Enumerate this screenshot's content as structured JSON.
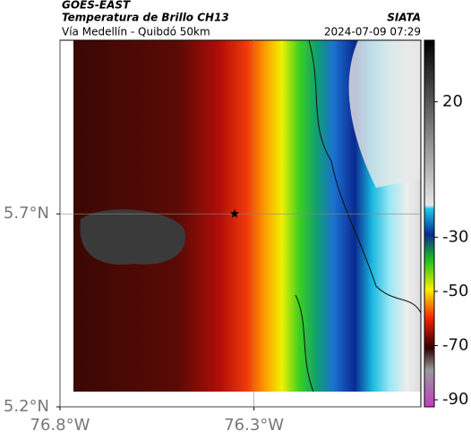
{
  "header": {
    "source": "GOES-EAST",
    "title": "Temperatura de Brillo CH13",
    "brand": "SIATA",
    "subtitle": "Vía Medellín - Quibdó 50km",
    "timestamp": "2024-07-09 07:29"
  },
  "map": {
    "xlim": [
      -76.8,
      -75.87
    ],
    "ylim": [
      5.2,
      6.15
    ],
    "xticks": [
      {
        "value": -76.8,
        "label": "76.8°W"
      },
      {
        "value": -76.3,
        "label": "76.3°W"
      }
    ],
    "yticks": [
      {
        "value": 5.2,
        "label": "5.2°N"
      },
      {
        "value": 5.7,
        "label": "5.7°N"
      }
    ],
    "grid": true,
    "marker": {
      "lon": -76.35,
      "lat": 5.7
    }
  },
  "colorbar": {
    "lim": [
      -92.6,
      42.7
    ],
    "ticks": [
      20,
      -30,
      -50,
      -70,
      -90
    ]
  }
}
